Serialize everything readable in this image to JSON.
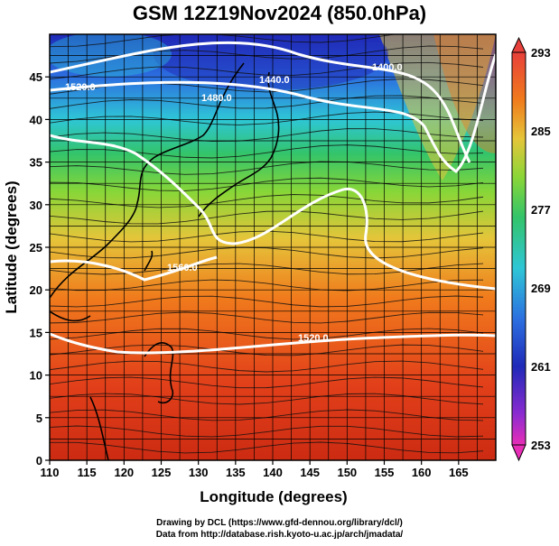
{
  "title": "GSM 12Z19Nov2024 (850.0hPa)",
  "x_axis": {
    "label": "Longitude (degrees)",
    "ticks": [
      "110",
      "115",
      "120",
      "125",
      "130",
      "135",
      "140",
      "145",
      "150",
      "155",
      "160",
      "165"
    ]
  },
  "y_axis": {
    "label": "Latitude  (degrees)",
    "ticks": [
      "0",
      "5",
      "10",
      "15",
      "20",
      "25",
      "30",
      "35",
      "40",
      "45"
    ]
  },
  "colorbar": {
    "ticks": [
      "293",
      "285",
      "277",
      "269",
      "261",
      "253"
    ]
  },
  "contour_labels": [
    "1400.0",
    "1440.0",
    "1480.0",
    "1520.0",
    "1560.0",
    "1520.0"
  ],
  "credits": [
    "Drawing by DCL (https://www.gfd-dennou.org/library/dcl/)",
    "Data from http://database.rish.kyoto-u.ac.jp/arch/jmadata/"
  ]
}
